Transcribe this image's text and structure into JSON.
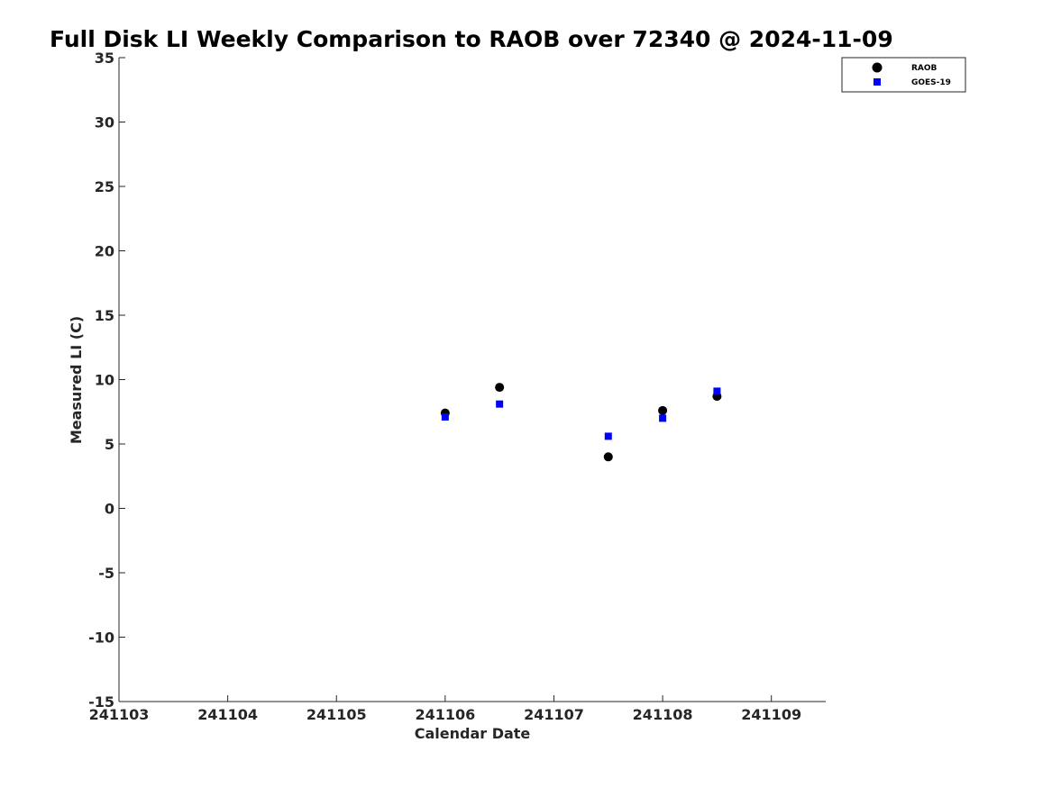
{
  "chart_data": {
    "type": "scatter",
    "title": "Full Disk LI Weekly Comparison to RAOB over 72340 @ 2024-11-09",
    "xlabel": "Calendar Date",
    "ylabel": "Measured LI (C)",
    "xlim": [
      241103,
      241109.5
    ],
    "ylim": [
      -15,
      35
    ],
    "xticks": [
      241103,
      241104,
      241105,
      241106,
      241107,
      241108,
      241109
    ],
    "xtick_labels": [
      "241103",
      "241104",
      "241105",
      "241106",
      "241107",
      "241108",
      "241109"
    ],
    "yticks": [
      -15,
      -10,
      -5,
      0,
      5,
      10,
      15,
      20,
      25,
      30,
      35
    ],
    "ytick_labels": [
      "-15",
      "-10",
      "-5",
      "0",
      "5",
      "10",
      "15",
      "20",
      "25",
      "30",
      "35"
    ],
    "grid": false,
    "legend_position": "top-right",
    "series": [
      {
        "name": "RAOB",
        "marker": "circle",
        "color": "#000000",
        "x": [
          241106,
          241106.5,
          241107.5,
          241108,
          241108.5
        ],
        "y": [
          7.4,
          9.4,
          4.0,
          7.6,
          8.7
        ]
      },
      {
        "name": "GOES-19",
        "marker": "square",
        "color": "#0000ff",
        "x": [
          241106,
          241106.5,
          241107.5,
          241108,
          241108.5
        ],
        "y": [
          7.1,
          8.1,
          5.6,
          7.0,
          9.1
        ]
      }
    ]
  }
}
